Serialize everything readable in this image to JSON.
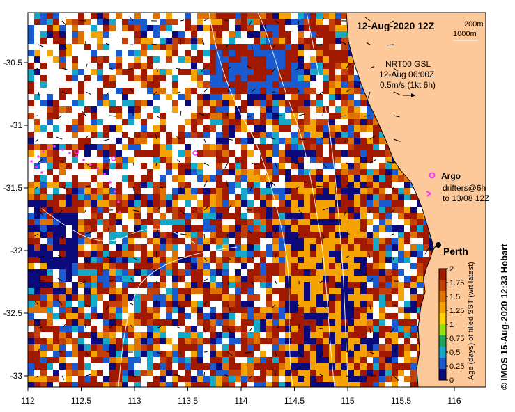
{
  "header": {
    "datetime": "12-Aug-2020 12Z"
  },
  "isobath_legend": [
    "200m",
    "1000m"
  ],
  "current_info": {
    "product": "NRT00 GSL",
    "datetime": "12-Aug 06:00Z",
    "scale": "0.5m/s (1kt 6h)"
  },
  "markers": {
    "argo_label": "Argo",
    "drifters_line1": "drifters@6h",
    "drifters_line2": "to 13/08 12Z",
    "city_label": "Perth",
    "argo_color": "#ff33ff",
    "drifter_color": "#ff33ff"
  },
  "x_axis": {
    "ticks": [
      "112",
      "112.5",
      "113",
      "113.5",
      "114",
      "114.5",
      "115",
      "115.5",
      "116"
    ]
  },
  "y_axis": {
    "ticks": [
      "-30.5",
      "-31",
      "-31.5",
      "-32",
      "-32.5",
      "-33"
    ]
  },
  "colorbar": {
    "label": "Age (days) of filled SST (wrt latest)",
    "ticks": [
      "2",
      "1.75",
      "1.5",
      "1.25",
      "1",
      "0.75",
      "0.5",
      "0.25",
      "0"
    ],
    "colors": [
      "#a11a00",
      "#c4400a",
      "#e07300",
      "#f5a300",
      "#ffd200",
      "#9be00f",
      "#21a35a",
      "#15a8c8",
      "#1a5bd0",
      "#0a0a7a"
    ]
  },
  "credit": "© IMOS 15-Aug-2020 12:33 Hobart",
  "colors": {
    "land": "#fdc89a",
    "background": "#ffffff"
  }
}
